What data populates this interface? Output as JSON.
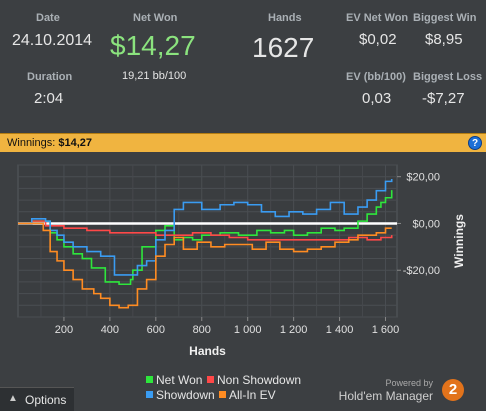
{
  "summary": {
    "date_label": "Date",
    "date_value": "24.10.2014",
    "duration_label": "Duration",
    "duration_value": "2:04",
    "net_won_label": "Net Won",
    "net_won_value": "$14,27",
    "net_won_bb": "19,21 bb/100",
    "hands_label": "Hands",
    "hands_value": "1627",
    "ev_net_won_label": "EV Net Won",
    "ev_net_won_value": "$0,02",
    "ev_bb_label": "EV (bb/100)",
    "ev_bb_value": "0,03",
    "biggest_win_label": "Biggest Win",
    "biggest_win_value": "$8,95",
    "biggest_loss_label": "Biggest Loss",
    "biggest_loss_value": "-$7,27"
  },
  "winnings_bar": {
    "label": "Winnings:",
    "value": "$14,27",
    "help_icon": "question-icon"
  },
  "colors": {
    "net_won": "#2ee63c",
    "non_showdown": "#ff4848",
    "showdown": "#3a9cf2",
    "all_in_ev": "#ff8c22",
    "zero_line": "#ffffff",
    "winnings_bar": "#f0b440"
  },
  "chart_data": {
    "type": "line",
    "xlabel": "Hands",
    "ylabel": "Winnings",
    "xlim": [
      0,
      1650
    ],
    "ylim": [
      -40,
      25
    ],
    "x_ticks": [
      200,
      400,
      600,
      800,
      1000,
      1200,
      1400,
      1600
    ],
    "x_tick_labels": [
      "200",
      "400",
      "600",
      "800",
      "1 000",
      "1 200",
      "1 400",
      "1 600"
    ],
    "y_ticks": [
      20,
      0,
      -20
    ],
    "y_tick_labels": [
      "$20,00",
      "$0,00",
      "-$20,00"
    ],
    "grid": true,
    "legend_position": "bottom",
    "series": [
      {
        "name": "Net Won",
        "color_key": "net_won",
        "x": [
          0,
          60,
          120,
          140,
          170,
          200,
          240,
          280,
          320,
          380,
          440,
          490,
          500,
          540,
          600,
          640,
          680,
          720,
          760,
          800,
          880,
          960,
          1040,
          1100,
          1160,
          1200,
          1260,
          1320,
          1380,
          1420,
          1480,
          1520,
          1560,
          1580,
          1600,
          1627
        ],
        "values": [
          0,
          1,
          1,
          -4,
          -7,
          -10,
          -13,
          -15,
          -19,
          -25,
          -26,
          -24,
          -20,
          -10,
          -3,
          -1,
          -7,
          -6,
          -7,
          -5,
          -4,
          -5,
          -3,
          -4,
          -3,
          -5,
          -4,
          -2,
          -3,
          -2,
          1,
          4,
          7,
          9,
          11,
          14.27
        ]
      },
      {
        "name": "Non Showdown",
        "color_key": "non_showdown",
        "x": [
          0,
          60,
          120,
          200,
          300,
          400,
          500,
          560,
          600,
          680,
          760,
          840,
          920,
          1000,
          1100,
          1200,
          1280,
          1360,
          1440,
          1520,
          1580,
          1627
        ],
        "values": [
          0,
          1,
          -1,
          -2,
          -3,
          -4,
          -4,
          -4,
          -5,
          -5,
          -4,
          -5,
          -6,
          -7,
          -7,
          -7,
          -7,
          -7,
          -6,
          -7,
          -6,
          -5
        ]
      },
      {
        "name": "Showdown",
        "color_key": "showdown",
        "x": [
          0,
          60,
          120,
          140,
          170,
          200,
          240,
          300,
          360,
          420,
          480,
          520,
          560,
          600,
          640,
          680,
          720,
          800,
          880,
          940,
          1000,
          1060,
          1120,
          1180,
          1240,
          1300,
          1360,
          1420,
          1480,
          1520,
          1560,
          1600,
          1627
        ],
        "values": [
          0,
          2,
          1,
          -3,
          -5,
          -8,
          -10,
          -12,
          -14,
          -22,
          -22,
          -18,
          -16,
          -7,
          -3,
          6,
          9,
          6,
          8,
          9,
          8,
          5,
          3,
          5,
          4,
          6,
          9,
          4,
          7,
          10,
          14,
          18,
          19
        ]
      },
      {
        "name": "All-In EV",
        "color_key": "all_in_ev",
        "x": [
          0,
          60,
          110,
          140,
          170,
          200,
          240,
          280,
          330,
          360,
          400,
          440,
          480,
          520,
          560,
          600,
          640,
          680,
          720,
          780,
          840,
          900,
          960,
          1020,
          1080,
          1140,
          1200,
          1260,
          1320,
          1380,
          1440,
          1480,
          1520,
          1560,
          1600,
          1627
        ],
        "values": [
          0,
          0,
          -3,
          -12,
          -16,
          -20,
          -24,
          -28,
          -30,
          -32,
          -35,
          -36,
          -35,
          -28,
          -24,
          -14,
          -9,
          -6,
          -11,
          -8,
          -10,
          -9,
          -9,
          -11,
          -8,
          -11,
          -12,
          -11,
          -10,
          -8,
          -7,
          -5,
          -5,
          -4,
          -2,
          -2
        ]
      }
    ]
  },
  "legend": {
    "net_won": "Net Won",
    "non_showdown": "Non Showdown",
    "showdown": "Showdown",
    "all_in_ev": "All-In EV"
  },
  "options": {
    "caret_icon": "caret-up-icon",
    "label": "Options"
  },
  "brand": {
    "powered_by": "Powered by",
    "name": "Hold'em Manager",
    "logo_text": "2",
    "logo_icon": "holdem-manager-logo-icon"
  }
}
